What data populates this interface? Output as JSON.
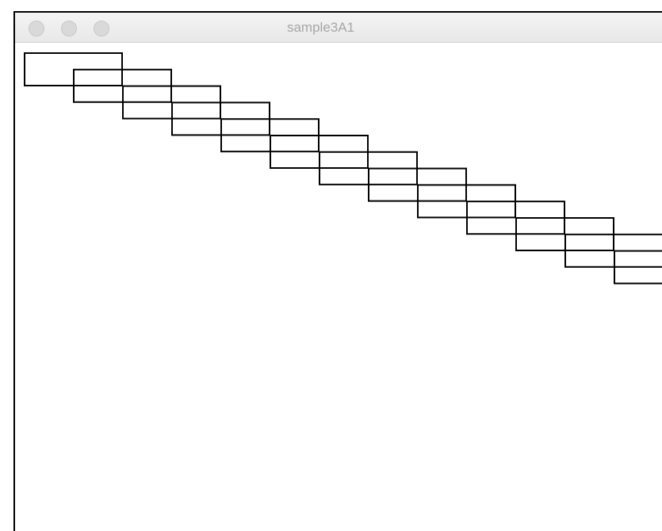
{
  "window": {
    "title": "sample3A1"
  },
  "sketch": {
    "shape": "rectangle",
    "count": 14,
    "stroke_color": "#000000",
    "fill": "none",
    "background_color": "#ffffff"
  }
}
